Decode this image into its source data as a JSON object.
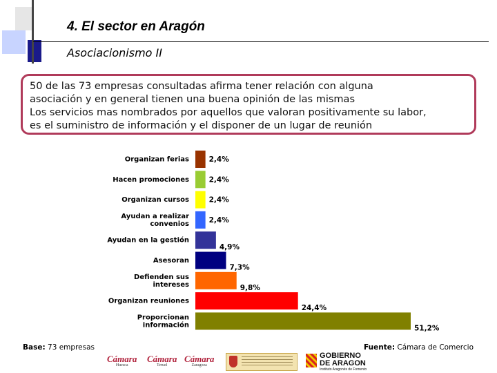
{
  "header": {
    "title": "4. El sector en Aragón",
    "subtitle": "Asociacionismo II"
  },
  "summary": {
    "line1": "50 de las 73 empresas consultadas afirma tener relación con alguna",
    "line2": "asociación y en general tienen una buena opinión de las mismas",
    "line3": "Los servicios mas nombrados por aquellos que valoran positivamente su labor,",
    "line4": "es el suministro de información y el disponer de un lugar de reunión"
  },
  "chart_data": {
    "type": "bar",
    "orientation": "horizontal",
    "title": "",
    "xlabel": "",
    "ylabel": "",
    "xlim": [
      0,
      51.2
    ],
    "grid": false,
    "categories": [
      [
        "Organizan ferias"
      ],
      [
        "Hacen promociones"
      ],
      [
        "Organizan cursos"
      ],
      [
        "Ayudan a realizar",
        "convenios"
      ],
      [
        "Ayudan en la gestión"
      ],
      [
        "Asesoran"
      ],
      [
        "Defienden sus",
        "intereses"
      ],
      [
        "Organizan reuniones"
      ],
      [
        "Proporcionan",
        "información"
      ]
    ],
    "values": [
      2.4,
      2.4,
      2.4,
      2.4,
      4.9,
      7.3,
      9.8,
      24.4,
      51.2
    ],
    "value_labels": [
      "2,4%",
      "2,4%",
      "2,4%",
      "2,4%",
      "4,9%",
      "7,3%",
      "9,8%",
      "24,4%",
      "51,2%"
    ],
    "colors": [
      "#993300",
      "#99cc33",
      "#ffff00",
      "#3366ff",
      "#333399",
      "#000080",
      "#ff6600",
      "#ff0000",
      "#808000"
    ]
  },
  "footer": {
    "base_label": "Base:",
    "base_value": "73 empresas",
    "source_label": "Fuente:",
    "source_value": "Cámara de Comercio"
  },
  "logos": {
    "camara1": "Cámara",
    "camara1_sub": "Huesca",
    "camara2": "Cámara",
    "camara2_sub": "Teruel",
    "camara3": "Cámara",
    "camara3_sub": "Zaragoza",
    "gobierno_line1": "GOBIERNO",
    "gobierno_line2": "DE ARAGON",
    "gobierno_sub": "Instituto Aragonés de Fomento"
  },
  "colors": {
    "accent_border": "#b03a5a",
    "deco_blue": "#1a1a8a",
    "deco_light": "#c8d4ff"
  }
}
